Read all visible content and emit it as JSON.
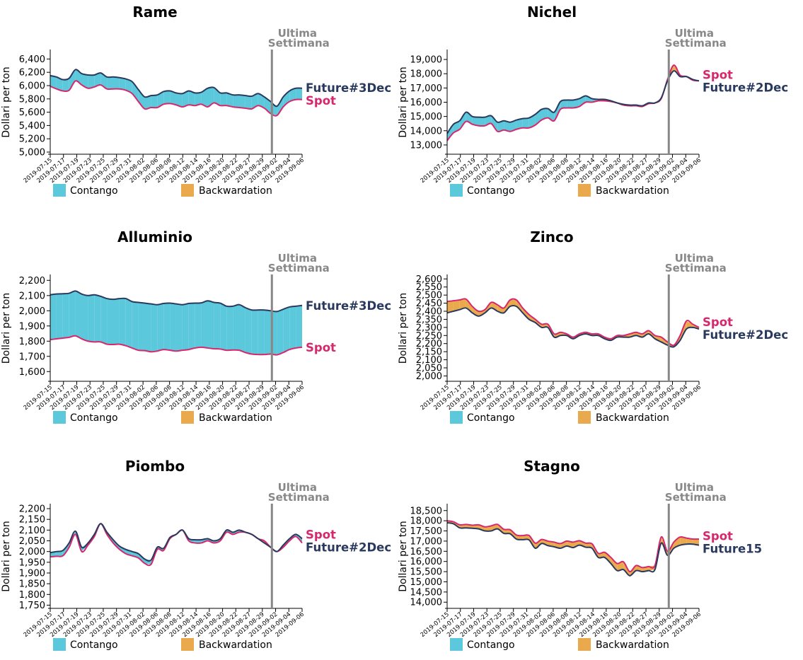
{
  "colors": {
    "contango": "#5bc8dc",
    "backwardation": "#eaa94d",
    "spot": "#d6286c",
    "future": "#2a3a5e",
    "marker": "#888888"
  },
  "chart_data": [
    {
      "type": "area",
      "title": "Rame",
      "ylabel": "Dollari per ton",
      "ylim": [
        5000,
        6500
      ],
      "yticks": [
        "5,000",
        "5,200",
        "5,400",
        "5,600",
        "5,800",
        "6,000",
        "6,200",
        "6,400"
      ],
      "yticks_values": [
        5000,
        5200,
        5400,
        5600,
        5800,
        6000,
        6200,
        6400
      ],
      "x_ticks": [
        "2019-07-15",
        "2019-07-17",
        "2019-07-19",
        "2019-07-23",
        "2019-07-25",
        "2019-07-29",
        "2019-07-31",
        "2019-08-02",
        "2019-08-06",
        "2019-08-08",
        "2019-08-12",
        "2019-08-14",
        "2019-08-16",
        "2019-08-20",
        "2019-08-22",
        "2019-08-27",
        "2019-08-29",
        "2019-09-02",
        "2019-09-04",
        "2019-09-06"
      ],
      "marker_text": [
        "Ultima",
        "Settimana"
      ],
      "marker_x": 0.88,
      "legend": [
        "Contango",
        "Backwardation"
      ],
      "label_order": [
        "future",
        "spot"
      ],
      "series": [
        {
          "name": "Spot",
          "role": "spot",
          "values": [
            5990,
            5950,
            5920,
            5930,
            6070,
            6010,
            5960,
            5980,
            6010,
            5950,
            5950,
            5950,
            5930,
            5880,
            5760,
            5650,
            5670,
            5670,
            5720,
            5730,
            5710,
            5680,
            5710,
            5700,
            5720,
            5680,
            5740,
            5700,
            5700,
            5680,
            5670,
            5660,
            5650,
            5700,
            5660,
            5580,
            5550,
            5680,
            5760,
            5790,
            5790
          ]
        },
        {
          "name": "Future#3Dec",
          "role": "future",
          "values": [
            6150,
            6130,
            6090,
            6110,
            6240,
            6180,
            6160,
            6160,
            6190,
            6130,
            6130,
            6120,
            6100,
            6060,
            5940,
            5830,
            5850,
            5860,
            5910,
            5920,
            5890,
            5880,
            5920,
            5890,
            5900,
            5960,
            5970,
            5890,
            5890,
            5860,
            5860,
            5850,
            5840,
            5880,
            5830,
            5760,
            5690,
            5830,
            5920,
            5960,
            5960
          ]
        }
      ]
    },
    {
      "type": "area",
      "title": "Nichel",
      "ylabel": "Dollari per ton",
      "ylim": [
        12500,
        19500
      ],
      "yticks": [
        "13,000",
        "14,000",
        "15,000",
        "16,000",
        "17,000",
        "18,000",
        "19,000"
      ],
      "yticks_values": [
        13000,
        14000,
        15000,
        16000,
        17000,
        18000,
        19000
      ],
      "x_ticks": [
        "2019-07-15",
        "2019-07-17",
        "2019-07-19",
        "2019-07-23",
        "2019-07-25",
        "2019-07-29",
        "2019-07-31",
        "2019-08-02",
        "2019-08-06",
        "2019-08-08",
        "2019-08-12",
        "2019-08-14",
        "2019-08-16",
        "2019-08-20",
        "2019-08-22",
        "2019-08-27",
        "2019-08-29",
        "2019-09-02",
        "2019-09-04",
        "2019-09-06"
      ],
      "marker_text": [
        "Ultima",
        "Settimana"
      ],
      "marker_x": 0.88,
      "legend": [
        "Contango",
        "Backwardation"
      ],
      "label_order": [
        "spot",
        "future"
      ],
      "series": [
        {
          "name": "Spot",
          "role": "spot",
          "values": [
            13300,
            13850,
            14100,
            14650,
            14450,
            14350,
            14350,
            14500,
            13950,
            14050,
            13950,
            14100,
            14200,
            14200,
            14400,
            14750,
            14900,
            14700,
            15500,
            15600,
            15600,
            15700,
            16000,
            16000,
            16100,
            16100,
            16050,
            15950,
            15800,
            15750,
            15750,
            15700,
            15900,
            15950,
            16250,
            17600,
            18600,
            17900,
            17800,
            17550,
            17500
          ]
        },
        {
          "name": "Future#2Dec",
          "role": "future",
          "values": [
            13800,
            14450,
            14700,
            15300,
            15000,
            14950,
            14950,
            15050,
            14600,
            14700,
            14600,
            14750,
            14850,
            14900,
            15150,
            15500,
            15550,
            15300,
            16050,
            16150,
            16150,
            16250,
            16450,
            16250,
            16200,
            16200,
            16100,
            15950,
            15850,
            15800,
            15800,
            15750,
            15950,
            15950,
            16300,
            17500,
            18200,
            17800,
            17800,
            17600,
            17500
          ]
        }
      ]
    },
    {
      "type": "area",
      "title": "Alluminio",
      "ylabel": "Dollari per ton",
      "ylim": [
        1550,
        2220
      ],
      "yticks": [
        "1,600",
        "1,700",
        "1,800",
        "1,900",
        "2,000",
        "2,100",
        "2,200"
      ],
      "yticks_values": [
        1600,
        1700,
        1800,
        1900,
        2000,
        2100,
        2200
      ],
      "x_ticks": [
        "2019-07-15",
        "2019-07-17",
        "2019-07-19",
        "2019-07-23",
        "2019-07-25",
        "2019-07-29",
        "2019-07-31",
        "2019-08-02",
        "2019-08-06",
        "2019-08-08",
        "2019-08-12",
        "2019-08-14",
        "2019-08-16",
        "2019-08-20",
        "2019-08-22",
        "2019-08-27",
        "2019-08-29",
        "2019-09-02",
        "2019-09-04",
        "2019-09-06"
      ],
      "marker_text": [
        "Ultima",
        "Settimana"
      ],
      "marker_x": 0.88,
      "legend": [
        "Contango",
        "Backwardation"
      ],
      "label_order": [
        "future",
        "spot"
      ],
      "series": [
        {
          "name": "Spot",
          "role": "spot",
          "values": [
            1810,
            1815,
            1820,
            1825,
            1835,
            1815,
            1800,
            1795,
            1795,
            1780,
            1778,
            1780,
            1770,
            1755,
            1740,
            1738,
            1730,
            1735,
            1745,
            1740,
            1735,
            1740,
            1745,
            1755,
            1760,
            1755,
            1750,
            1748,
            1740,
            1742,
            1740,
            1725,
            1715,
            1712,
            1712,
            1715,
            1710,
            1725,
            1745,
            1755,
            1760
          ]
        },
        {
          "name": "Future#3Dec",
          "role": "future",
          "values": [
            2105,
            2110,
            2112,
            2115,
            2130,
            2110,
            2100,
            2105,
            2095,
            2080,
            2075,
            2080,
            2080,
            2060,
            2055,
            2050,
            2045,
            2040,
            2048,
            2050,
            2045,
            2040,
            2048,
            2050,
            2052,
            2065,
            2055,
            2050,
            2030,
            2030,
            2040,
            2020,
            2005,
            2005,
            2005,
            2000,
            1995,
            2010,
            2025,
            2030,
            2035
          ]
        }
      ]
    },
    {
      "type": "area",
      "title": "Zinco",
      "ylabel": "Dollari per ton",
      "ylim": [
        1980,
        2610
      ],
      "yticks": [
        "2,000",
        "2,050",
        "2,100",
        "2,150",
        "2,200",
        "2,250",
        "2,300",
        "2,350",
        "2,400",
        "2,450",
        "2,500",
        "2,550",
        "2,600"
      ],
      "yticks_values": [
        2000,
        2050,
        2100,
        2150,
        2200,
        2250,
        2300,
        2350,
        2400,
        2450,
        2500,
        2550,
        2600
      ],
      "x_ticks": [
        "2019-07-15",
        "2019-07-17",
        "2019-07-19",
        "2019-07-23",
        "2019-07-25",
        "2019-07-29",
        "2019-07-31",
        "2019-08-02",
        "2019-08-06",
        "2019-08-08",
        "2019-08-12",
        "2019-08-14",
        "2019-08-16",
        "2019-08-20",
        "2019-08-22",
        "2019-08-27",
        "2019-08-29",
        "2019-09-02",
        "2019-09-04",
        "2019-09-06"
      ],
      "marker_text": [
        "Ultima",
        "Settimana"
      ],
      "marker_x": 0.88,
      "legend": [
        "Contango",
        "Backwardation"
      ],
      "label_order": [
        "spot",
        "future"
      ],
      "series": [
        {
          "name": "Spot",
          "role": "spot",
          "values": [
            2460,
            2465,
            2470,
            2475,
            2430,
            2400,
            2410,
            2455,
            2440,
            2420,
            2470,
            2470,
            2420,
            2380,
            2350,
            2320,
            2320,
            2260,
            2270,
            2260,
            2240,
            2260,
            2270,
            2260,
            2260,
            2240,
            2230,
            2250,
            2250,
            2260,
            2270,
            2260,
            2280,
            2250,
            2240,
            2210,
            2190,
            2250,
            2340,
            2320,
            2300
          ]
        },
        {
          "name": "Future#2Dec",
          "role": "future",
          "values": [
            2390,
            2400,
            2410,
            2420,
            2390,
            2370,
            2390,
            2420,
            2400,
            2390,
            2430,
            2430,
            2390,
            2350,
            2330,
            2300,
            2300,
            2240,
            2250,
            2250,
            2230,
            2250,
            2260,
            2250,
            2250,
            2230,
            2220,
            2240,
            2240,
            2240,
            2250,
            2240,
            2260,
            2230,
            2210,
            2190,
            2180,
            2220,
            2290,
            2300,
            2290
          ]
        }
      ]
    },
    {
      "type": "area",
      "title": "Piombo",
      "ylabel": "Dollari per ton",
      "ylim": [
        1745,
        2210
      ],
      "yticks": [
        "1,750",
        "1,800",
        "1,850",
        "1,900",
        "1,950",
        "2,000",
        "2,050",
        "2,100",
        "2,150",
        "2,200"
      ],
      "yticks_values": [
        1750,
        1800,
        1850,
        1900,
        1950,
        2000,
        2050,
        2100,
        2150,
        2200
      ],
      "x_ticks": [
        "2019-07-15",
        "2019-07-17",
        "2019-07-19",
        "2019-07-23",
        "2019-07-25",
        "2019-07-29",
        "2019-07-31",
        "2019-08-02",
        "2019-08-06",
        "2019-08-08",
        "2019-08-12",
        "2019-08-14",
        "2019-08-16",
        "2019-08-20",
        "2019-08-22",
        "2019-08-27",
        "2019-08-29",
        "2019-09-02",
        "2019-09-04",
        "2019-09-06"
      ],
      "marker_text": [
        "Ultima",
        "Settimana"
      ],
      "marker_x": 0.88,
      "legend": [
        "Contango",
        "Backwardation"
      ],
      "label_order": [
        "spot",
        "future"
      ],
      "series": [
        {
          "name": "Spot",
          "role": "spot",
          "values": [
            1975,
            1978,
            1980,
            2020,
            2080,
            2000,
            2030,
            2070,
            2130,
            2080,
            2040,
            2010,
            1990,
            1980,
            1970,
            1945,
            1940,
            2010,
            2005,
            2060,
            2080,
            2100,
            2050,
            2040,
            2040,
            2050,
            2040,
            2050,
            2090,
            2080,
            2090,
            2090,
            2080,
            2060,
            2050,
            2020,
            2000,
            2020,
            2050,
            2070,
            2040
          ]
        },
        {
          "name": "Future#2Dec",
          "role": "future",
          "values": [
            1995,
            2000,
            2005,
            2040,
            2095,
            2020,
            2040,
            2080,
            2130,
            2090,
            2055,
            2025,
            2010,
            2000,
            1990,
            1965,
            1960,
            2020,
            2015,
            2065,
            2080,
            2100,
            2060,
            2055,
            2055,
            2060,
            2050,
            2060,
            2100,
            2090,
            2100,
            2090,
            2080,
            2060,
            2040,
            2020,
            2000,
            2030,
            2060,
            2080,
            2060
          ]
        }
      ]
    },
    {
      "type": "area",
      "title": "Stagno",
      "ylabel": "Dollari per ton",
      "ylim": [
        13800,
        18700
      ],
      "yticks": [
        "14,000",
        "14,500",
        "15,000",
        "15,500",
        "16,000",
        "16,500",
        "17,000",
        "17,500",
        "18,000",
        "18,500"
      ],
      "yticks_values": [
        14000,
        14500,
        15000,
        15500,
        16000,
        16500,
        17000,
        17500,
        18000,
        18500
      ],
      "x_ticks": [
        "2019-07-15",
        "2019-07-17",
        "2019-07-19",
        "2019-07-23",
        "2019-07-25",
        "2019-07-29",
        "2019-07-31",
        "2019-08-02",
        "2019-08-06",
        "2019-08-08",
        "2019-08-12",
        "2019-08-14",
        "2019-08-16",
        "2019-08-20",
        "2019-08-22",
        "2019-08-27",
        "2019-08-29",
        "2019-09-02",
        "2019-09-04",
        "2019-09-06"
      ],
      "marker_text": [
        "Ultima",
        "Settimana"
      ],
      "marker_x": 0.88,
      "legend": [
        "Contango",
        "Backwardation"
      ],
      "label_order": [
        "spot",
        "future"
      ],
      "series": [
        {
          "name": "Spot",
          "role": "spot",
          "values": [
            18000,
            17950,
            17800,
            17820,
            17780,
            17800,
            17700,
            17750,
            17820,
            17580,
            17560,
            17300,
            17270,
            17280,
            16900,
            17080,
            17000,
            16950,
            16880,
            17000,
            16950,
            17020,
            16900,
            16870,
            16400,
            16450,
            16200,
            15900,
            15980,
            15500,
            15800,
            15700,
            15750,
            15800,
            17200,
            16500,
            16950,
            17200,
            17150,
            17100,
            17100
          ]
        },
        {
          "name": "Future15",
          "role": "future",
          "values": [
            17900,
            17850,
            17650,
            17650,
            17630,
            17600,
            17500,
            17500,
            17600,
            17380,
            17360,
            17100,
            17070,
            17060,
            16650,
            16880,
            16780,
            16720,
            16650,
            16760,
            16680,
            16800,
            16700,
            16650,
            16200,
            16200,
            15900,
            15550,
            15600,
            15300,
            15550,
            15500,
            15550,
            15600,
            16900,
            16300,
            16650,
            16800,
            16850,
            16850,
            16800
          ]
        }
      ]
    }
  ]
}
